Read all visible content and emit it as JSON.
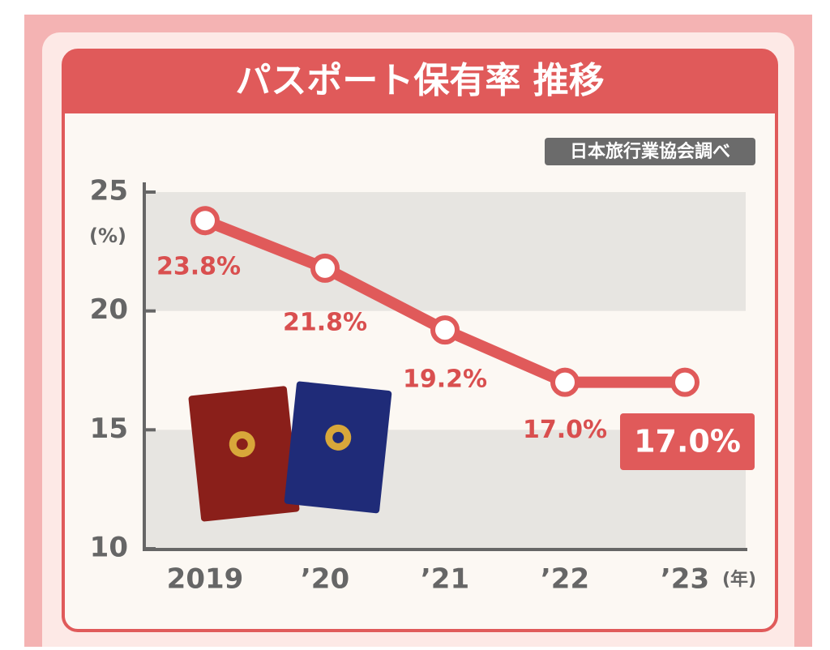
{
  "chart_data": {
    "type": "line",
    "title": "パスポート保有率 推移",
    "source": "日本旅行業協会調べ",
    "y_unit": "(%)",
    "x_unit": "(年)",
    "categories": [
      "2019",
      "’20",
      "’21",
      "’22",
      "’23"
    ],
    "values": [
      23.8,
      21.8,
      19.2,
      17.0,
      17.0
    ],
    "value_labels": [
      "23.8%",
      "21.8%",
      "19.2%",
      "17.0%",
      "17.0%"
    ],
    "color": "#e05a5a",
    "ylim": [
      10,
      25
    ],
    "yticks": [
      10,
      15,
      20,
      25
    ]
  }
}
